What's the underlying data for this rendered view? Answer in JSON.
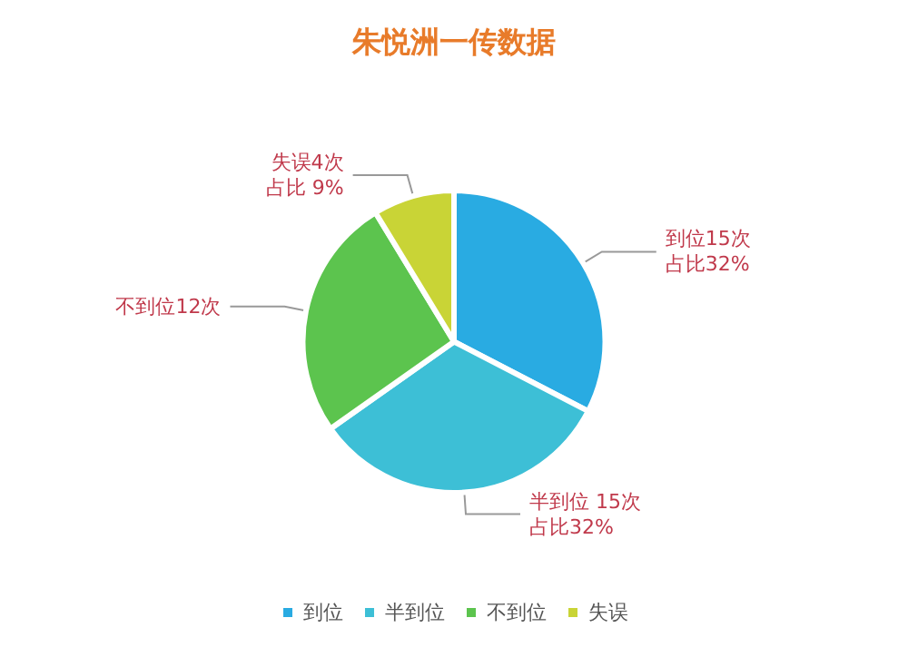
{
  "chart_data": {
    "type": "pie",
    "title": "朱悦洲一传数据",
    "categories": [
      "到位",
      "半到位",
      "不到位",
      "失误"
    ],
    "values": [
      15,
      15,
      12,
      4
    ],
    "colors": [
      "#29abe2",
      "#3dbfd6",
      "#5cc44e",
      "#c9d436"
    ],
    "value_labels": [
      "到位15次占比32%",
      "半到位 15次占比32%",
      "不到位12次",
      "失误4次占比 9%"
    ],
    "legend": "bottom"
  }
}
